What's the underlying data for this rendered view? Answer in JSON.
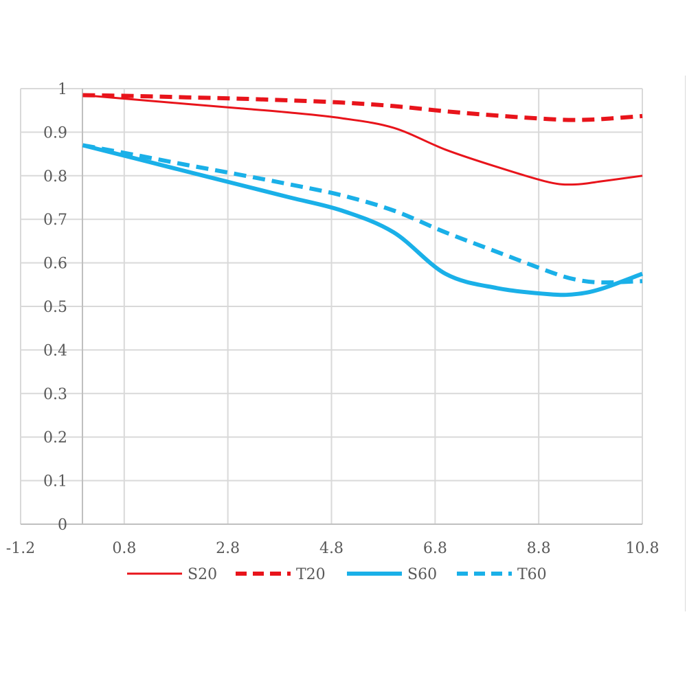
{
  "chart_data": {
    "type": "line",
    "title": "",
    "xlabel": "",
    "ylabel": "",
    "xlim": [
      -1.2,
      10.8
    ],
    "ylim": [
      0,
      1
    ],
    "x_ticks": [
      -1.2,
      0.8,
      2.8,
      4.8,
      6.8,
      8.8,
      10.8
    ],
    "x_tick_labels": [
      "-1.2",
      "0.8",
      "2.8",
      "4.8",
      "6.8",
      "8.8",
      "10.8"
    ],
    "y_ticks": [
      0,
      0.1,
      0.2,
      0.3,
      0.4,
      0.5,
      0.6,
      0.7,
      0.8,
      0.9,
      1
    ],
    "y_tick_labels": [
      "0",
      "0.1",
      "0.2",
      "0.3",
      "0.4",
      "0.5",
      "0.6",
      "0.7",
      "0.8",
      "0.9",
      "1"
    ],
    "grid": true,
    "legend_position": "bottom",
    "series": [
      {
        "name": "S20",
        "color": "#e8141b",
        "style": "solid",
        "weight": "thin",
        "x": [
          0,
          1,
          2,
          3,
          4,
          5,
          6,
          7,
          8,
          9,
          9.5,
          10,
          10.8
        ],
        "y": [
          0.985,
          0.975,
          0.965,
          0.955,
          0.945,
          0.932,
          0.91,
          0.86,
          0.82,
          0.785,
          0.78,
          0.787,
          0.8
        ]
      },
      {
        "name": "T20",
        "color": "#e8141b",
        "style": "dashed",
        "weight": "thick",
        "x": [
          0,
          1,
          2,
          3,
          4,
          5,
          6,
          7,
          8,
          9,
          9.5,
          10,
          10.8
        ],
        "y": [
          0.985,
          0.983,
          0.98,
          0.977,
          0.973,
          0.968,
          0.96,
          0.948,
          0.938,
          0.93,
          0.928,
          0.93,
          0.937
        ]
      },
      {
        "name": "S60",
        "color": "#1ab0e8",
        "style": "solid",
        "weight": "thick",
        "x": [
          0,
          1,
          2,
          3,
          4,
          5,
          6,
          7,
          8,
          9,
          9.5,
          10,
          10.8
        ],
        "y": [
          0.87,
          0.84,
          0.81,
          0.78,
          0.75,
          0.72,
          0.67,
          0.575,
          0.542,
          0.528,
          0.528,
          0.54,
          0.575
        ]
      },
      {
        "name": "T60",
        "color": "#1ab0e8",
        "style": "dashed",
        "weight": "thick",
        "x": [
          0,
          1,
          2,
          3,
          4,
          5,
          6,
          7,
          8,
          9,
          9.5,
          10,
          10.8
        ],
        "y": [
          0.87,
          0.848,
          0.825,
          0.803,
          0.78,
          0.755,
          0.72,
          0.67,
          0.625,
          0.58,
          0.562,
          0.555,
          0.558
        ]
      }
    ]
  }
}
